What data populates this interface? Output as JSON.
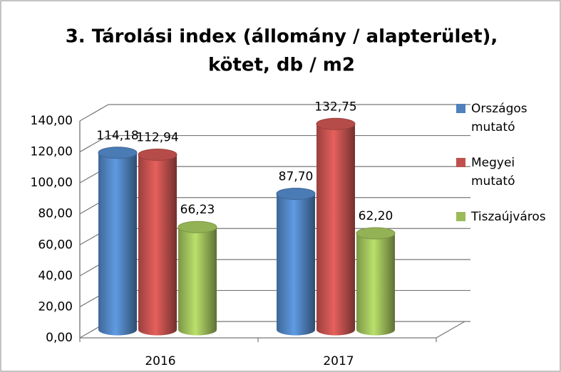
{
  "chart_data": {
    "type": "bar3d",
    "title": [
      "3. Tárolási index (állomány / alapterület),",
      "kötet, db / m2"
    ],
    "categories": [
      "2016",
      "2017"
    ],
    "series": [
      {
        "name": "Országos mutató",
        "color": "#4f81bd",
        "values": [
          114.18,
          87.7
        ],
        "value_labels": [
          "114,18",
          "87,70"
        ]
      },
      {
        "name": "Megyei mutató",
        "color": "#c0504d",
        "values": [
          112.94,
          132.75
        ],
        "value_labels": [
          "112,94",
          "132,75"
        ]
      },
      {
        "name": "Tiszaújváros",
        "color": "#9bbb59",
        "values": [
          66.23,
          62.2
        ],
        "value_labels": [
          "66,23",
          "62,20"
        ]
      }
    ],
    "ylim": [
      0,
      140
    ],
    "yticks": [
      {
        "value": 0,
        "label": "0,00"
      },
      {
        "value": 20,
        "label": "20,00"
      },
      {
        "value": 40,
        "label": "40,00"
      },
      {
        "value": 60,
        "label": "60,00"
      },
      {
        "value": 80,
        "label": "80,00"
      },
      {
        "value": 100,
        "label": "100,00"
      },
      {
        "value": 120,
        "label": "120,00"
      },
      {
        "value": 140,
        "label": "140,00"
      }
    ],
    "grid": true,
    "legend": "right"
  }
}
